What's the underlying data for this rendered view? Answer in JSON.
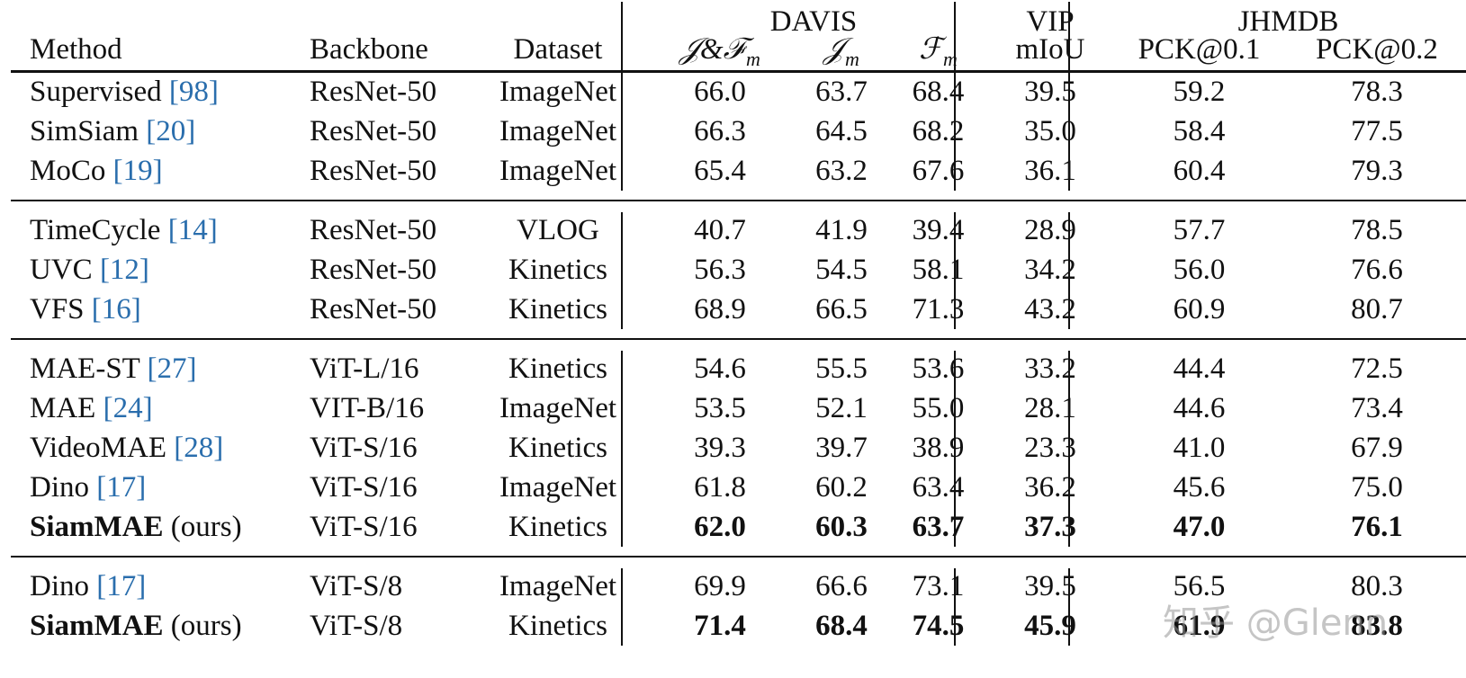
{
  "header": {
    "method": "Method",
    "backbone": "Backbone",
    "dataset": "Dataset",
    "davis": "DAVIS",
    "vip": "VIP",
    "jhmdb": "JHMDB",
    "jf_main": "𝒥&ℱ",
    "jf_sub": "m",
    "j_main": "𝒥",
    "j_sub": "m",
    "f_main": "ℱ",
    "f_sub": "m",
    "miou": "mIoU",
    "pck01": "PCK@0.1",
    "pck02": "PCK@0.2"
  },
  "groups": [
    {
      "rows": [
        {
          "method": "Supervised",
          "cite": "[98]",
          "backbone": "ResNet-50",
          "dataset": "ImageNet",
          "jf": "66.0",
          "j": "63.7",
          "f": "68.4",
          "miou": "39.5",
          "pck01": "59.2",
          "pck02": "78.3",
          "bold": false
        },
        {
          "method": "SimSiam",
          "cite": "[20]",
          "backbone": "ResNet-50",
          "dataset": "ImageNet",
          "jf": "66.3",
          "j": "64.5",
          "f": "68.2",
          "miou": "35.0",
          "pck01": "58.4",
          "pck02": "77.5",
          "bold": false
        },
        {
          "method": "MoCo",
          "cite": "[19]",
          "backbone": "ResNet-50",
          "dataset": "ImageNet",
          "jf": "65.4",
          "j": "63.2",
          "f": "67.6",
          "miou": "36.1",
          "pck01": "60.4",
          "pck02": "79.3",
          "bold": false
        }
      ]
    },
    {
      "rows": [
        {
          "method": "TimeCycle",
          "cite": "[14]",
          "backbone": "ResNet-50",
          "dataset": "VLOG",
          "jf": "40.7",
          "j": "41.9",
          "f": "39.4",
          "miou": "28.9",
          "pck01": "57.7",
          "pck02": "78.5",
          "bold": false
        },
        {
          "method": "UVC",
          "cite": "[12]",
          "backbone": "ResNet-50",
          "dataset": "Kinetics",
          "jf": "56.3",
          "j": "54.5",
          "f": "58.1",
          "miou": "34.2",
          "pck01": "56.0",
          "pck02": "76.6",
          "bold": false
        },
        {
          "method": "VFS",
          "cite": "[16]",
          "backbone": "ResNet-50",
          "dataset": "Kinetics",
          "jf": "68.9",
          "j": "66.5",
          "f": "71.3",
          "miou": "43.2",
          "pck01": "60.9",
          "pck02": "80.7",
          "bold": false
        }
      ]
    },
    {
      "rows": [
        {
          "method": "MAE-ST",
          "cite": "[27]",
          "backbone": "ViT-L/16",
          "dataset": "Kinetics",
          "jf": "54.6",
          "j": "55.5",
          "f": "53.6",
          "miou": "33.2",
          "pck01": "44.4",
          "pck02": "72.5",
          "bold": false
        },
        {
          "method": "MAE",
          "cite": "[24]",
          "backbone": "VIT-B/16",
          "dataset": "ImageNet",
          "jf": "53.5",
          "j": "52.1",
          "f": "55.0",
          "miou": "28.1",
          "pck01": "44.6",
          "pck02": "73.4",
          "bold": false
        },
        {
          "method": "VideoMAE",
          "cite": "[28]",
          "backbone": "ViT-S/16",
          "dataset": "Kinetics",
          "jf": "39.3",
          "j": "39.7",
          "f": "38.9",
          "miou": "23.3",
          "pck01": "41.0",
          "pck02": "67.9",
          "bold": false
        },
        {
          "method": "Dino",
          "cite": "[17]",
          "backbone": "ViT-S/16",
          "dataset": "ImageNet",
          "jf": "61.8",
          "j": "60.2",
          "f": "63.4",
          "miou": "36.2",
          "pck01": "45.6",
          "pck02": "75.0",
          "bold": false
        },
        {
          "method": "SiamMAE",
          "cite": "(ours)",
          "backbone": "ViT-S/16",
          "dataset": "Kinetics",
          "jf": "62.0",
          "j": "60.3",
          "f": "63.7",
          "miou": "37.3",
          "pck01": "47.0",
          "pck02": "76.1",
          "bold": true
        }
      ]
    },
    {
      "rows": [
        {
          "method": "Dino",
          "cite": "[17]",
          "backbone": "ViT-S/8",
          "dataset": "ImageNet",
          "jf": "69.9",
          "j": "66.6",
          "f": "73.1",
          "miou": "39.5",
          "pck01": "56.5",
          "pck02": "80.3",
          "bold": false
        },
        {
          "method": "SiamMAE",
          "cite": "(ours)",
          "backbone": "ViT-S/8",
          "dataset": "Kinetics",
          "jf": "71.4",
          "j": "68.4",
          "f": "74.5",
          "miou": "45.9",
          "pck01": "61.9",
          "pck02": "83.8",
          "bold": true
        }
      ]
    }
  ],
  "watermark": "知乎 @Glenn"
}
